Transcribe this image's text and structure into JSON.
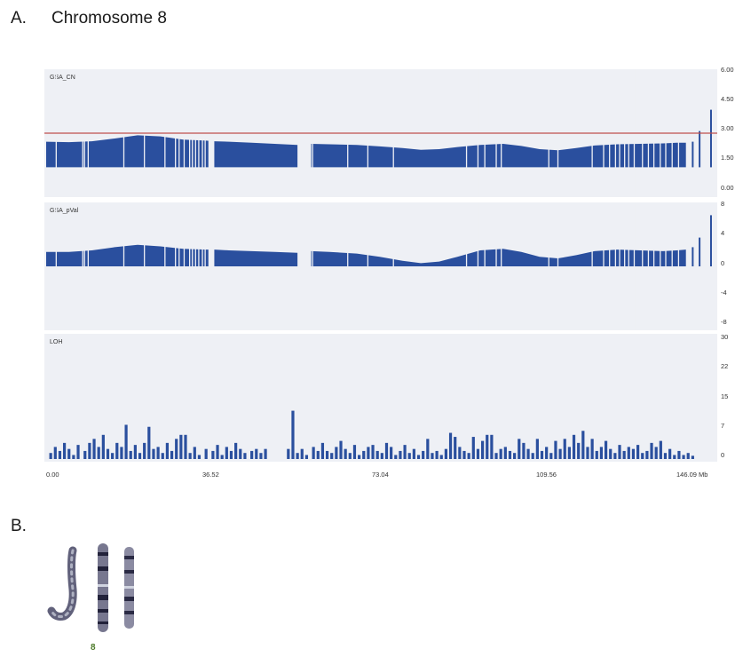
{
  "figure": {
    "label_a": "A.",
    "title_a": "Chromosome 8",
    "label_b": "B.",
    "karyotype_number": "8"
  },
  "colors": {
    "bar": "#2a4f9e",
    "panel_bg": "#eef0f5",
    "reference_line": "#c0504d",
    "karyotype": "#3a3a5a"
  },
  "chart_data": [
    {
      "type": "area",
      "panel_title": "GSA_CN",
      "xlim": [
        0,
        146.09
      ],
      "ylim": [
        0,
        6
      ],
      "y_ticks": [
        "6.00",
        "4.50",
        "3.00",
        "1.50",
        "0.00"
      ],
      "reference_line_y": 3.0,
      "baseline": 1.4,
      "gaps": [
        [
          35.5,
          36.8
        ],
        [
          55.0,
          58.0
        ]
      ],
      "profile": [
        [
          0,
          2.6
        ],
        [
          5,
          2.58
        ],
        [
          10,
          2.62
        ],
        [
          15,
          2.75
        ],
        [
          20,
          2.9
        ],
        [
          25,
          2.85
        ],
        [
          30,
          2.7
        ],
        [
          35,
          2.65
        ],
        [
          36.8,
          2.62
        ],
        [
          40,
          2.6
        ],
        [
          45,
          2.55
        ],
        [
          50,
          2.5
        ],
        [
          55,
          2.45
        ],
        [
          58,
          2.5
        ],
        [
          62,
          2.48
        ],
        [
          68,
          2.45
        ],
        [
          73,
          2.38
        ],
        [
          78,
          2.3
        ],
        [
          82,
          2.22
        ],
        [
          86,
          2.25
        ],
        [
          90,
          2.35
        ],
        [
          95,
          2.45
        ],
        [
          100,
          2.5
        ],
        [
          104,
          2.4
        ],
        [
          108,
          2.25
        ],
        [
          112,
          2.2
        ],
        [
          116,
          2.3
        ],
        [
          120,
          2.42
        ],
        [
          125,
          2.48
        ],
        [
          130,
          2.5
        ],
        [
          135,
          2.52
        ],
        [
          138,
          2.55
        ],
        [
          140,
          2.55
        ]
      ],
      "extra_bars": [
        [
          141.5,
          2.6
        ],
        [
          143.0,
          3.1
        ],
        [
          145.5,
          4.1
        ]
      ],
      "white_lines": [
        2.2,
        8.0,
        8.4,
        9.2,
        17.0,
        21.5,
        26.0,
        28.3,
        29.1,
        30.2,
        31.4,
        32.0,
        32.7,
        33.4,
        34.2,
        34.8,
        58.3,
        66.0,
        70.4,
        76.0,
        92.0,
        94.5,
        96.0,
        98.5,
        99.6,
        110.0,
        112.0,
        119.5,
        122.0,
        123.3,
        124.6,
        125.5,
        126.6,
        127.5,
        128.7,
        130.5,
        131.8,
        133.0,
        134.4,
        135.6,
        137.0,
        138.4
      ]
    },
    {
      "type": "area",
      "panel_title": "GSA_pVal",
      "xlim": [
        0,
        146.09
      ],
      "ylim": [
        -8,
        8
      ],
      "y_ticks": [
        "8",
        "4",
        "0",
        "-4",
        "-8"
      ],
      "baseline": 0,
      "gaps": [
        [
          35.5,
          36.8
        ],
        [
          55.0,
          58.0
        ]
      ],
      "profile": [
        [
          0,
          1.8
        ],
        [
          5,
          1.8
        ],
        [
          10,
          2.0
        ],
        [
          15,
          2.4
        ],
        [
          20,
          2.7
        ],
        [
          25,
          2.5
        ],
        [
          30,
          2.2
        ],
        [
          35,
          2.1
        ],
        [
          36.8,
          2.1
        ],
        [
          40,
          2.0
        ],
        [
          45,
          1.9
        ],
        [
          50,
          1.8
        ],
        [
          55,
          1.7
        ],
        [
          58,
          1.9
        ],
        [
          62,
          1.8
        ],
        [
          68,
          1.6
        ],
        [
          73,
          1.2
        ],
        [
          78,
          0.7
        ],
        [
          82,
          0.4
        ],
        [
          86,
          0.6
        ],
        [
          90,
          1.2
        ],
        [
          95,
          2.0
        ],
        [
          100,
          2.2
        ],
        [
          104,
          1.8
        ],
        [
          108,
          1.2
        ],
        [
          112,
          1.0
        ],
        [
          116,
          1.4
        ],
        [
          120,
          1.9
        ],
        [
          125,
          2.1
        ],
        [
          130,
          2.0
        ],
        [
          135,
          1.9
        ],
        [
          138,
          2.0
        ],
        [
          140,
          2.1
        ]
      ],
      "extra_bars": [
        [
          141.5,
          2.4
        ],
        [
          143.0,
          3.6
        ],
        [
          145.5,
          6.4
        ]
      ],
      "white_lines": [
        2.2,
        8.0,
        8.4,
        9.2,
        17.0,
        21.5,
        26.0,
        28.3,
        29.1,
        30.2,
        31.4,
        32.0,
        32.7,
        33.4,
        34.2,
        34.8,
        58.3,
        66.0,
        70.4,
        76.0,
        92.0,
        94.5,
        96.0,
        98.5,
        99.6,
        110.0,
        112.0,
        119.5,
        122.0,
        123.3,
        124.6,
        125.5,
        126.6,
        127.5,
        128.7,
        130.5,
        131.8,
        133.0,
        134.4,
        135.6,
        137.0,
        138.4
      ]
    },
    {
      "type": "bar",
      "panel_title": "LOH",
      "xlim": [
        0,
        146.09
      ],
      "ylim": [
        0,
        30
      ],
      "y_ticks": [
        "30",
        "22",
        "15",
        "7",
        "0"
      ],
      "x_ticks": [
        "0.00",
        "36.52",
        "73.04",
        "109.56",
        "146.09 Mb"
      ],
      "x_tick_values": [
        0,
        36.52,
        73.04,
        109.56,
        146.09
      ],
      "bars": [
        [
          1.0,
          1.5
        ],
        [
          2.0,
          3.0
        ],
        [
          3.0,
          2.0
        ],
        [
          4.0,
          4.0
        ],
        [
          5.0,
          2.5
        ],
        [
          6.0,
          1.0
        ],
        [
          7.0,
          3.5
        ],
        [
          8.5,
          2.0
        ],
        [
          9.5,
          4.0
        ],
        [
          10.5,
          5.0
        ],
        [
          11.5,
          3.0
        ],
        [
          12.5,
          6.0
        ],
        [
          13.5,
          2.5
        ],
        [
          14.5,
          1.5
        ],
        [
          15.5,
          4.0
        ],
        [
          16.5,
          3.0
        ],
        [
          17.5,
          8.5
        ],
        [
          18.5,
          2.0
        ],
        [
          19.5,
          3.5
        ],
        [
          20.5,
          1.5
        ],
        [
          21.5,
          4.0
        ],
        [
          22.5,
          8.0
        ],
        [
          23.5,
          2.5
        ],
        [
          24.5,
          3.0
        ],
        [
          25.5,
          1.5
        ],
        [
          26.5,
          4.0
        ],
        [
          27.5,
          2.0
        ],
        [
          28.5,
          5.0
        ],
        [
          29.5,
          6.0
        ],
        [
          30.5,
          6.0
        ],
        [
          31.5,
          1.5
        ],
        [
          32.5,
          3.0
        ],
        [
          33.5,
          1.0
        ],
        [
          35.0,
          2.5
        ],
        [
          36.5,
          2.0
        ],
        [
          37.5,
          3.5
        ],
        [
          38.5,
          1.0
        ],
        [
          39.5,
          3.0
        ],
        [
          40.5,
          2.0
        ],
        [
          41.5,
          4.0
        ],
        [
          42.5,
          2.5
        ],
        [
          43.5,
          1.5
        ],
        [
          45.0,
          2.0
        ],
        [
          46.0,
          2.5
        ],
        [
          47.0,
          1.5
        ],
        [
          48.0,
          2.5
        ],
        [
          53.0,
          2.5
        ],
        [
          54.0,
          12.0
        ],
        [
          55.0,
          1.5
        ],
        [
          56.0,
          2.5
        ],
        [
          57.0,
          1.0
        ],
        [
          58.5,
          3.0
        ],
        [
          59.5,
          2.0
        ],
        [
          60.5,
          4.0
        ],
        [
          61.5,
          2.0
        ],
        [
          62.5,
          1.5
        ],
        [
          63.5,
          3.0
        ],
        [
          64.5,
          4.5
        ],
        [
          65.5,
          2.5
        ],
        [
          66.5,
          1.5
        ],
        [
          67.5,
          3.5
        ],
        [
          68.5,
          1.0
        ],
        [
          69.5,
          2.0
        ],
        [
          70.5,
          3.0
        ],
        [
          71.5,
          3.5
        ],
        [
          72.5,
          2.0
        ],
        [
          73.5,
          1.5
        ],
        [
          74.5,
          4.0
        ],
        [
          75.5,
          3.0
        ],
        [
          76.5,
          1.0
        ],
        [
          77.5,
          2.0
        ],
        [
          78.5,
          3.5
        ],
        [
          79.5,
          1.5
        ],
        [
          80.5,
          2.5
        ],
        [
          81.5,
          1.0
        ],
        [
          82.5,
          2.0
        ],
        [
          83.5,
          5.0
        ],
        [
          84.5,
          1.5
        ],
        [
          85.5,
          2.0
        ],
        [
          86.5,
          1.0
        ],
        [
          87.5,
          2.5
        ],
        [
          88.5,
          6.5
        ],
        [
          89.5,
          5.5
        ],
        [
          90.5,
          3.0
        ],
        [
          91.5,
          2.0
        ],
        [
          92.5,
          1.5
        ],
        [
          93.5,
          5.5
        ],
        [
          94.5,
          2.5
        ],
        [
          95.5,
          4.5
        ],
        [
          96.5,
          6.0
        ],
        [
          97.5,
          6.0
        ],
        [
          98.5,
          1.5
        ],
        [
          99.5,
          2.5
        ],
        [
          100.5,
          3.0
        ],
        [
          101.5,
          2.0
        ],
        [
          102.5,
          1.5
        ],
        [
          103.5,
          5.0
        ],
        [
          104.5,
          4.0
        ],
        [
          105.5,
          2.5
        ],
        [
          106.5,
          1.5
        ],
        [
          107.5,
          5.0
        ],
        [
          108.5,
          2.0
        ],
        [
          109.5,
          3.0
        ],
        [
          110.5,
          1.5
        ],
        [
          111.5,
          4.5
        ],
        [
          112.5,
          2.5
        ],
        [
          113.5,
          5.0
        ],
        [
          114.5,
          3.0
        ],
        [
          115.5,
          6.0
        ],
        [
          116.5,
          4.0
        ],
        [
          117.5,
          7.0
        ],
        [
          118.5,
          3.0
        ],
        [
          119.5,
          5.0
        ],
        [
          120.5,
          2.0
        ],
        [
          121.5,
          3.0
        ],
        [
          122.5,
          4.5
        ],
        [
          123.5,
          2.5
        ],
        [
          124.5,
          1.5
        ],
        [
          125.5,
          3.5
        ],
        [
          126.5,
          2.0
        ],
        [
          127.5,
          3.0
        ],
        [
          128.5,
          2.5
        ],
        [
          129.5,
          3.5
        ],
        [
          130.5,
          1.5
        ],
        [
          131.5,
          2.0
        ],
        [
          132.5,
          4.0
        ],
        [
          133.5,
          3.0
        ],
        [
          134.5,
          4.5
        ],
        [
          135.5,
          1.5
        ],
        [
          136.5,
          2.5
        ],
        [
          137.5,
          1.0
        ],
        [
          138.5,
          2.0
        ],
        [
          139.5,
          1.0
        ],
        [
          140.5,
          1.5
        ],
        [
          141.5,
          0.8
        ]
      ]
    }
  ]
}
